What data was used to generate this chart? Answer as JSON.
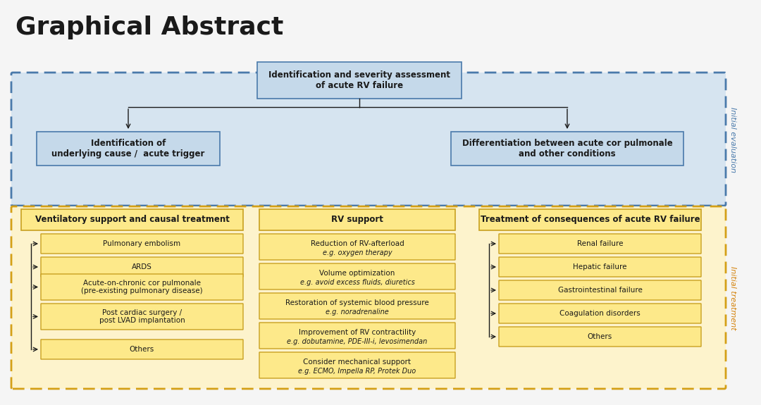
{
  "title": "Graphical Abstract",
  "title_fontsize": 26,
  "title_fontweight": "bold",
  "title_color": "#1a1a1a",
  "bg_color": "#f5f5f5",
  "blue_box_bg": "#d6e4f0",
  "blue_box_border": "#4a7aab",
  "blue_inner_box_bg": "#c5d9ea",
  "blue_inner_box_border": "#4a7aab",
  "yellow_box_bg": "#fdf3cc",
  "yellow_box_border": "#d4a017",
  "yellow_inner_box_bg": "#fde98a",
  "yellow_inner_box_border": "#c8a020",
  "label_blue_eval": "Initial evaluation",
  "label_orange_treat": "Initial treatment",
  "label_color_blue": "#4a7aab",
  "label_color_orange": "#d4820a",
  "top_center_box": "Identification and severity assessment\nof acute RV failure",
  "top_left_box": "Identification of\nunderlying cause /  acute trigger",
  "top_right_box": "Differentiation between acute cor pulmonale\nand other conditions",
  "col1_header": "Ventilatory support and causal treatment",
  "col1_items": [
    "Pulmonary embolism",
    "ARDS",
    "Acute-on-chronic cor pulmonale\n(pre-existing pulmonary disease)",
    "Post cardiac surgery /\npost LVAD implantation",
    "Others"
  ],
  "col2_header": "RV support",
  "col2_items": [
    "Reduction of RV-afterload\ne.g. oxygen therapy",
    "Volume optimization\ne.g. avoid excess fluids, diuretics",
    "Restoration of systemic blood pressure\ne.g. noradrenaline",
    "Improvement of RV contractility\ne.g. dobutamine, PDE-III-i, levosimendan",
    "Consider mechanical support\ne.g. ECMO, Impella RP, Protek Duo"
  ],
  "col2_italic_lines": [
    1,
    3,
    5,
    7,
    9
  ],
  "col3_header": "Treatment of consequences of acute RV failure",
  "col3_items": [
    "Renal failure",
    "Hepatic failure",
    "Gastrointestinal failure",
    "Coagulation disorders",
    "Others"
  ],
  "arrow_color": "#1a1a1a",
  "font_family": "DejaVu Sans"
}
